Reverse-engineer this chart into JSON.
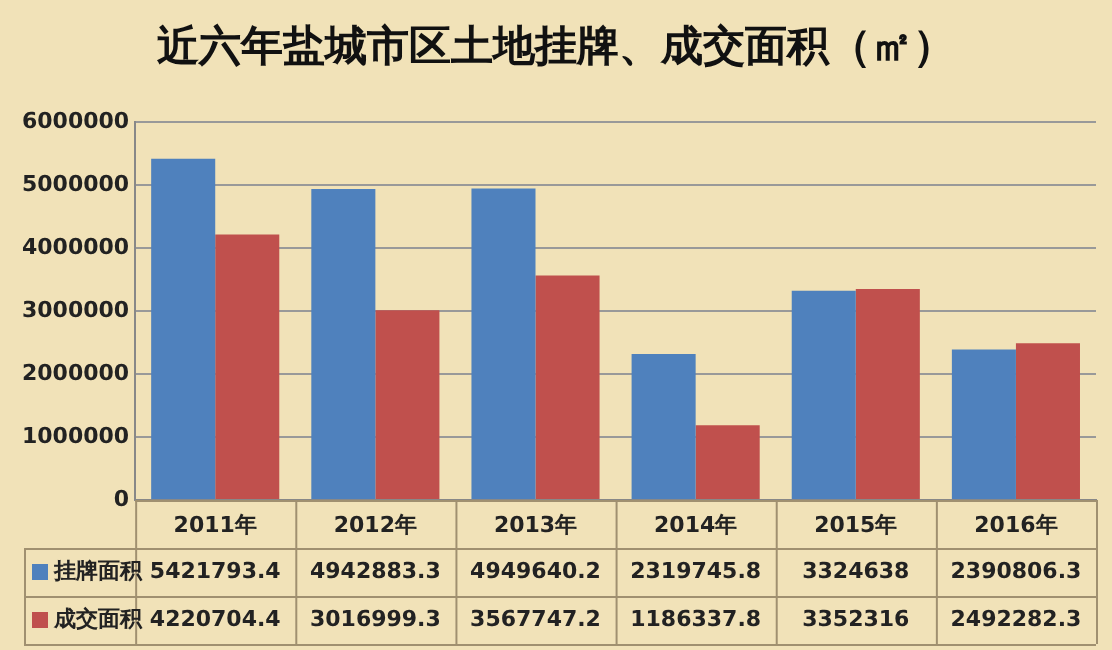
{
  "chart_data": {
    "type": "bar",
    "title": "近六年盐城市区土地挂牌、成交面积（㎡）",
    "categories": [
      "2011年",
      "2012年",
      "2013年",
      "2014年",
      "2015年",
      "2016年"
    ],
    "series": [
      {
        "name": "挂牌面积",
        "color": "#4f81bd",
        "values": [
          5421793.4,
          4942883.3,
          4949640.2,
          2319745.8,
          3324638,
          2390806.3
        ]
      },
      {
        "name": "成交面积",
        "color": "#c0504d",
        "values": [
          4220704.4,
          3016999.3,
          3567747.2,
          1186337.8,
          3352316,
          2492282.3
        ]
      }
    ],
    "ylim": [
      0,
      6000000
    ],
    "yticks": [
      0,
      1000000,
      2000000,
      3000000,
      4000000,
      5000000,
      6000000
    ],
    "grid": "y",
    "legend": "bottom",
    "data_labels": true
  }
}
